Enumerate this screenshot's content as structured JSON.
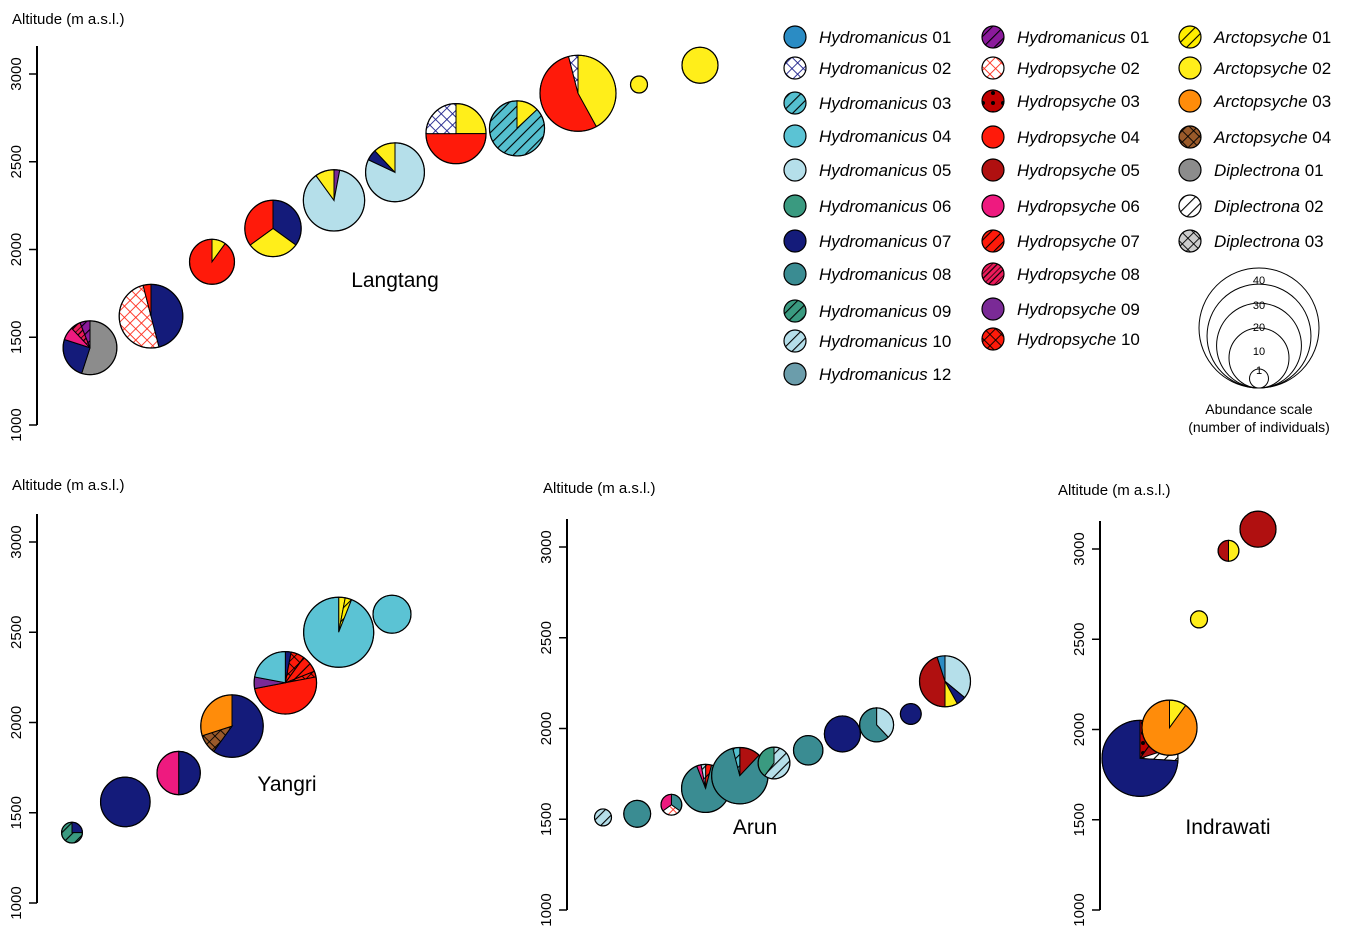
{
  "colors": {
    "H01": "#2b8cc4",
    "H02": "#ffffff",
    "H03": "#55c0cf",
    "H04": "#5bc3d4",
    "H05": "#b5dfea",
    "H06": "#3a9a80",
    "H07": "#141b7a",
    "H08": "#3a8c92",
    "H09": "#3a9a80",
    "H10": "#b5dfea",
    "H12": "#6b9dab",
    "Y01": "#8b1a9c",
    "Y02": "#ffffff",
    "Y03": "#c00000",
    "Y04": "#ff1a0a",
    "Y05": "#b01010",
    "Y06": "#ee1a7f",
    "Y07": "#ff1a0a",
    "Y08": "#ee1a5a",
    "Y09": "#7a2a96",
    "Y10": "#ff1a0a",
    "A01": "#ffee00",
    "A02": "#ffee1a",
    "A03": "#ff8c0a",
    "A04": "#9a5a2a",
    "D01": "#8c8c8c",
    "D02": "#ffffff",
    "D03": "#cccccc"
  },
  "legend": {
    "entries": [
      {
        "key": "H01",
        "genus": "Hydromanicus",
        "num": "01",
        "color": "H01",
        "pattern": "none"
      },
      {
        "key": "H02",
        "genus": "Hydromanicus",
        "num": "02",
        "color": "H02",
        "pattern": "cross-navy"
      },
      {
        "key": "H03",
        "genus": "Hydromanicus",
        "num": "03",
        "color": "H03",
        "pattern": "stripe"
      },
      {
        "key": "H04",
        "genus": "Hydromanicus",
        "num": "04",
        "color": "H04",
        "pattern": "none"
      },
      {
        "key": "H05",
        "genus": "Hydromanicus",
        "num": "05",
        "color": "H05",
        "pattern": "none"
      },
      {
        "key": "H06",
        "genus": "Hydromanicus",
        "num": "06",
        "color": "H06",
        "pattern": "none"
      },
      {
        "key": "H07",
        "genus": "Hydromanicus",
        "num": "07",
        "color": "H07",
        "pattern": "none"
      },
      {
        "key": "H08",
        "genus": "Hydromanicus",
        "num": "08",
        "color": "H08",
        "pattern": "none"
      },
      {
        "key": "H09",
        "genus": "Hydromanicus",
        "num": "09",
        "color": "H09",
        "pattern": "stripe"
      },
      {
        "key": "H10",
        "genus": "Hydromanicus",
        "num": "10",
        "color": "H10",
        "pattern": "stripe"
      },
      {
        "key": "H12",
        "genus": "Hydromanicus",
        "num": "12",
        "color": "H12",
        "pattern": "none"
      },
      {
        "key": "Y01",
        "genus": "Hydromanicus",
        "num": "01",
        "color": "Y01",
        "pattern": "stripe"
      },
      {
        "key": "Y02",
        "genus": "Hydropsyche",
        "num": "02",
        "color": "Y02",
        "pattern": "cross-red"
      },
      {
        "key": "Y03",
        "genus": "Hydropsyche",
        "num": "03",
        "color": "Y03",
        "pattern": "dots"
      },
      {
        "key": "Y04",
        "genus": "Hydropsyche",
        "num": "04",
        "color": "Y04",
        "pattern": "none"
      },
      {
        "key": "Y05",
        "genus": "Hydropsyche",
        "num": "05",
        "color": "Y05",
        "pattern": "none"
      },
      {
        "key": "Y06",
        "genus": "Hydropsyche",
        "num": "06",
        "color": "Y06",
        "pattern": "none"
      },
      {
        "key": "Y07",
        "genus": "Hydropsyche",
        "num": "07",
        "color": "Y07",
        "pattern": "stripe"
      },
      {
        "key": "Y08",
        "genus": "Hydropsyche",
        "num": "08",
        "color": "Y08",
        "pattern": "stripe-fine"
      },
      {
        "key": "Y09",
        "genus": "Hydropsyche",
        "num": "09",
        "color": "Y09",
        "pattern": "none"
      },
      {
        "key": "Y10",
        "genus": "Hydropsyche",
        "num": "10",
        "color": "Y10",
        "pattern": "cross-dark"
      },
      {
        "key": "A01",
        "genus": "Arctopsyche",
        "num": "01",
        "color": "A01",
        "pattern": "stripe"
      },
      {
        "key": "A02",
        "genus": "Arctopsyche",
        "num": "02",
        "color": "A02",
        "pattern": "none"
      },
      {
        "key": "A03",
        "genus": "Arctopsyche",
        "num": "03",
        "color": "A03",
        "pattern": "none"
      },
      {
        "key": "A04",
        "genus": "Arctopsyche",
        "num": "04",
        "color": "A04",
        "pattern": "cross-dark"
      },
      {
        "key": "D01",
        "genus": "Diplectrona",
        "num": "01",
        "color": "D01",
        "pattern": "none"
      },
      {
        "key": "D02",
        "genus": "Diplectrona",
        "num": "02",
        "color": "D02",
        "pattern": "stripe"
      },
      {
        "key": "D03",
        "genus": "Diplectrona",
        "num": "03",
        "color": "D03",
        "pattern": "cross-dark"
      }
    ],
    "scale": {
      "values": [
        40,
        30,
        20,
        10,
        1
      ],
      "title": "Abundance scale",
      "subtitle": "(number of individuals)"
    }
  },
  "chart_data": [
    {
      "type": "scatter",
      "subtype": "pie-bubbles",
      "label": "Langtang",
      "ylabel": "Altitude (m a.s.l.)",
      "ylim": [
        1000,
        3000
      ],
      "yticks": [
        1000,
        1500,
        2000,
        2500,
        3000
      ],
      "sites": [
        {
          "altitude": 1440,
          "abundance": 20,
          "slices": [
            {
              "sp": "D01",
              "v": 0.55
            },
            {
              "sp": "H07",
              "v": 0.25
            },
            {
              "sp": "Y06",
              "v": 0.08
            },
            {
              "sp": "Y08",
              "v": 0.06
            },
            {
              "sp": "Y01",
              "v": 0.06
            }
          ]
        },
        {
          "altitude": 1620,
          "abundance": 28,
          "slices": [
            {
              "sp": "H07",
              "v": 0.46
            },
            {
              "sp": "Y02",
              "v": 0.5
            },
            {
              "sp": "Y04",
              "v": 0.04
            }
          ]
        },
        {
          "altitude": 1930,
          "abundance": 14,
          "slices": [
            {
              "sp": "A02",
              "v": 0.1
            },
            {
              "sp": "Y04",
              "v": 0.9
            }
          ]
        },
        {
          "altitude": 2120,
          "abundance": 22,
          "slices": [
            {
              "sp": "H07",
              "v": 0.35
            },
            {
              "sp": "A02",
              "v": 0.3
            },
            {
              "sp": "Y04",
              "v": 0.35
            }
          ]
        },
        {
          "altitude": 2280,
          "abundance": 26,
          "slices": [
            {
              "sp": "Y09",
              "v": 0.03
            },
            {
              "sp": "H05",
              "v": 0.87
            },
            {
              "sp": "A02",
              "v": 0.1
            }
          ]
        },
        {
          "altitude": 2440,
          "abundance": 24,
          "slices": [
            {
              "sp": "H05",
              "v": 0.82
            },
            {
              "sp": "H07",
              "v": 0.06
            },
            {
              "sp": "A02",
              "v": 0.12
            }
          ]
        },
        {
          "altitude": 2660,
          "abundance": 25,
          "slices": [
            {
              "sp": "A02",
              "v": 0.25
            },
            {
              "sp": "Y04",
              "v": 0.5
            },
            {
              "sp": "H02",
              "v": 0.25
            }
          ]
        },
        {
          "altitude": 2690,
          "abundance": 21,
          "slices": [
            {
              "sp": "A02",
              "v": 0.13
            },
            {
              "sp": "H03",
              "v": 0.87
            }
          ]
        },
        {
          "altitude": 2890,
          "abundance": 40,
          "slices": [
            {
              "sp": "A02",
              "v": 0.42
            },
            {
              "sp": "Y04",
              "v": 0.54
            },
            {
              "sp": "H02",
              "v": 0.04
            }
          ]
        },
        {
          "altitude": 2940,
          "abundance": 2,
          "slices": [
            {
              "sp": "A02",
              "v": 1
            }
          ]
        },
        {
          "altitude": 3050,
          "abundance": 9,
          "slices": [
            {
              "sp": "A02",
              "v": 1
            }
          ]
        }
      ]
    },
    {
      "type": "scatter",
      "subtype": "pie-bubbles",
      "label": "Yangri",
      "ylabel": "Altitude (m a.s.l.)",
      "ylim": [
        1000,
        3000
      ],
      "yticks": [
        1000,
        1500,
        2000,
        2500,
        3000
      ],
      "sites": [
        {
          "altitude": 1390,
          "abundance": 3,
          "slices": [
            {
              "sp": "H07",
              "v": 0.25
            },
            {
              "sp": "H09",
              "v": 0.75
            }
          ]
        },
        {
          "altitude": 1560,
          "abundance": 17,
          "slices": [
            {
              "sp": "H07",
              "v": 1
            }
          ]
        },
        {
          "altitude": 1720,
          "abundance": 13,
          "slices": [
            {
              "sp": "H07",
              "v": 0.5
            },
            {
              "sp": "Y06",
              "v": 0.5
            }
          ]
        },
        {
          "altitude": 1980,
          "abundance": 27,
          "slices": [
            {
              "sp": "H07",
              "v": 0.6
            },
            {
              "sp": "A04",
              "v": 0.1
            },
            {
              "sp": "A03",
              "v": 0.3
            }
          ]
        },
        {
          "altitude": 2220,
          "abundance": 27,
          "slices": [
            {
              "sp": "H07",
              "v": 0.03
            },
            {
              "sp": "Y10",
              "v": 0.07
            },
            {
              "sp": "Y07",
              "v": 0.09
            },
            {
              "sp": "Y10",
              "v": 0.03
            },
            {
              "sp": "Y04",
              "v": 0.5
            },
            {
              "sp": "Y09",
              "v": 0.06
            },
            {
              "sp": "H04",
              "v": 0.22
            }
          ]
        },
        {
          "altitude": 2500,
          "abundance": 34,
          "slices": [
            {
              "sp": "A02",
              "v": 0.03
            },
            {
              "sp": "A01",
              "v": 0.03
            },
            {
              "sp": "H04",
              "v": 0.94
            }
          ]
        },
        {
          "altitude": 2600,
          "abundance": 10,
          "slices": [
            {
              "sp": "H04",
              "v": 1
            }
          ]
        }
      ]
    },
    {
      "type": "scatter",
      "subtype": "pie-bubbles",
      "label": "Arun",
      "ylabel": "Altitude (m a.s.l.)",
      "ylim": [
        1000,
        3000
      ],
      "yticks": [
        1000,
        1500,
        2000,
        2500,
        3000
      ],
      "sites": [
        {
          "altitude": 1510,
          "abundance": 2,
          "slices": [
            {
              "sp": "H10",
              "v": 1
            }
          ]
        },
        {
          "altitude": 1530,
          "abundance": 5,
          "slices": [
            {
              "sp": "H08",
              "v": 1
            }
          ]
        },
        {
          "altitude": 1580,
          "abundance": 3,
          "slices": [
            {
              "sp": "H08",
              "v": 0.35
            },
            {
              "sp": "Y02",
              "v": 0.3
            },
            {
              "sp": "Y06",
              "v": 0.35
            }
          ]
        },
        {
          "altitude": 1670,
          "abundance": 16,
          "slices": [
            {
              "sp": "Y07",
              "v": 0.04
            },
            {
              "sp": "H08",
              "v": 0.9
            },
            {
              "sp": "Y06",
              "v": 0.03
            },
            {
              "sp": "H10",
              "v": 0.03
            }
          ]
        },
        {
          "altitude": 1740,
          "abundance": 22,
          "slices": [
            {
              "sp": "Y05",
              "v": 0.12
            },
            {
              "sp": "H08",
              "v": 0.84
            },
            {
              "sp": "H03",
              "v": 0.04
            }
          ]
        },
        {
          "altitude": 1810,
          "abundance": 7,
          "slices": [
            {
              "sp": "H10",
              "v": 0.6
            },
            {
              "sp": "H06",
              "v": 0.4
            }
          ]
        },
        {
          "altitude": 1880,
          "abundance": 6,
          "slices": [
            {
              "sp": "H08",
              "v": 1
            }
          ]
        },
        {
          "altitude": 1970,
          "abundance": 9,
          "slices": [
            {
              "sp": "H07",
              "v": 1
            }
          ]
        },
        {
          "altitude": 2020,
          "abundance": 8,
          "slices": [
            {
              "sp": "H05",
              "v": 0.38
            },
            {
              "sp": "H08",
              "v": 0.62
            }
          ]
        },
        {
          "altitude": 2080,
          "abundance": 3,
          "slices": [
            {
              "sp": "H07",
              "v": 1
            }
          ]
        },
        {
          "altitude": 2260,
          "abundance": 18,
          "slices": [
            {
              "sp": "H05",
              "v": 0.36
            },
            {
              "sp": "H07",
              "v": 0.06
            },
            {
              "sp": "A02",
              "v": 0.08
            },
            {
              "sp": "Y05",
              "v": 0.45
            },
            {
              "sp": "H01",
              "v": 0.05
            }
          ]
        }
      ]
    },
    {
      "type": "scatter",
      "subtype": "pie-bubbles",
      "label": "Indrawati",
      "ylabel": "Altitude (m a.s.l.)",
      "ylim": [
        1000,
        3000
      ],
      "yticks": [
        1000,
        1500,
        2000,
        2500,
        3000
      ],
      "sites": [
        {
          "altitude": 1840,
          "abundance": 40,
          "slices": [
            {
              "sp": "Y03",
              "v": 0.1
            },
            {
              "sp": "Y05",
              "v": 0.1
            },
            {
              "sp": "D02",
              "v": 0.06
            },
            {
              "sp": "H07",
              "v": 0.74
            }
          ]
        },
        {
          "altitude": 2010,
          "abundance": 21,
          "slices": [
            {
              "sp": "A02",
              "v": 0.1
            },
            {
              "sp": "A03",
              "v": 0.9
            }
          ]
        },
        {
          "altitude": 2610,
          "abundance": 2,
          "slices": [
            {
              "sp": "A02",
              "v": 1
            }
          ]
        },
        {
          "altitude": 2990,
          "abundance": 3,
          "slices": [
            {
              "sp": "A02",
              "v": 0.5
            },
            {
              "sp": "Y05",
              "v": 0.5
            }
          ]
        },
        {
          "altitude": 3110,
          "abundance": 9,
          "slices": [
            {
              "sp": "Y05",
              "v": 1
            }
          ]
        }
      ]
    }
  ]
}
